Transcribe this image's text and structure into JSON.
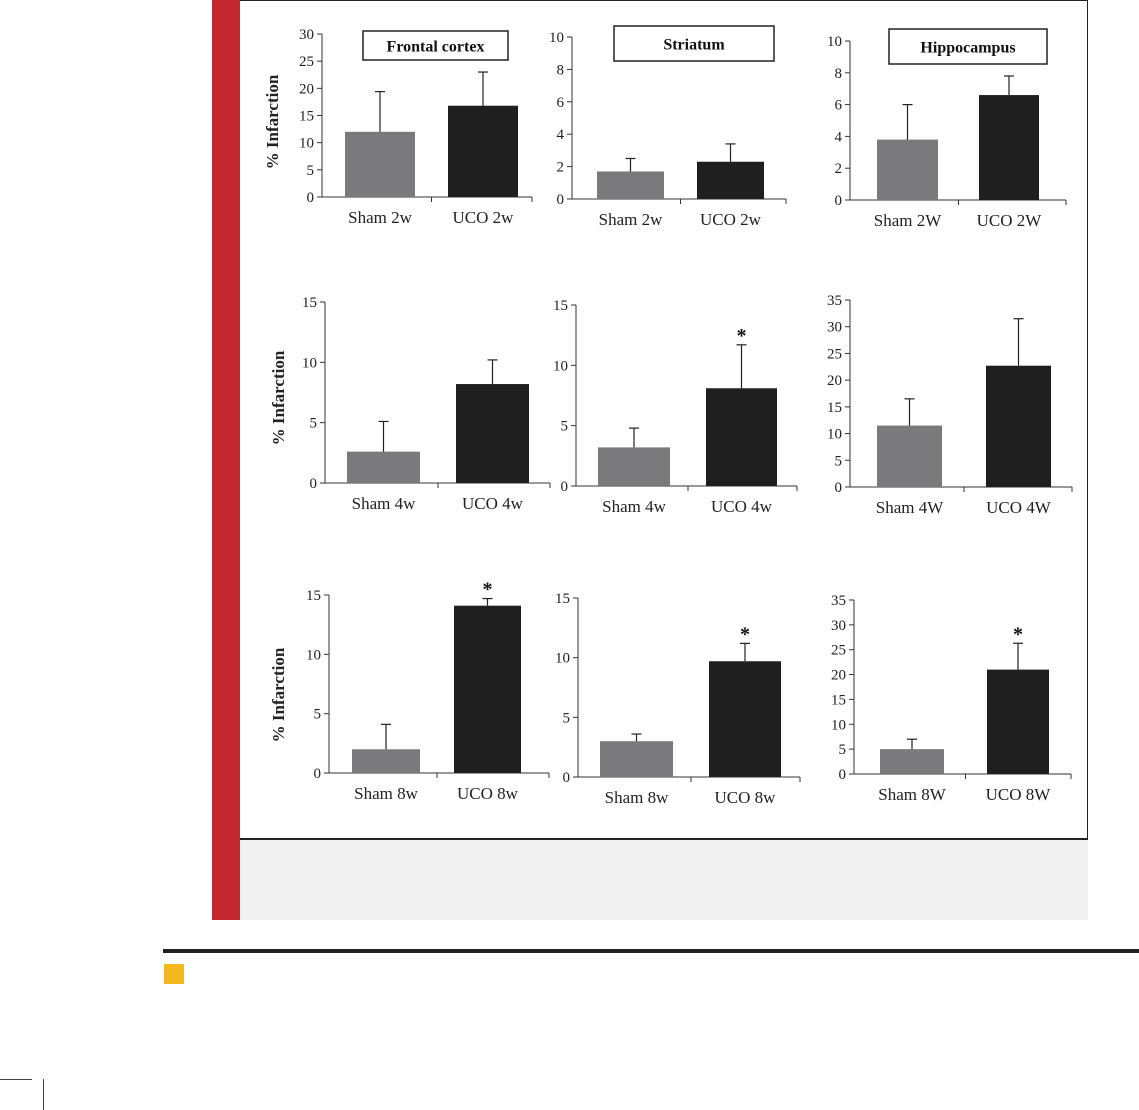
{
  "colors": {
    "sham": "#7a7a7c",
    "uco": "#1f1f20",
    "stripe": "#c1272d",
    "caption_bg": "#f1f1f2",
    "accent_square": "#f2b81e"
  },
  "chart_data": [
    {
      "type": "bar",
      "title": "Frontal cortex",
      "ylabel": "% Infarction",
      "categories": [
        "Sham 2w",
        "UCO 2w"
      ],
      "values": [
        12,
        16.8
      ],
      "errors": [
        7.4,
        6.2
      ],
      "ylim": [
        0,
        30
      ],
      "yticks": [
        "0",
        "5",
        "10",
        "15",
        "20",
        "25",
        "30"
      ],
      "significant": [
        false,
        false
      ]
    },
    {
      "type": "bar",
      "title": "Striatum",
      "ylabel": "",
      "categories": [
        "Sham 2w",
        "UCO 2w"
      ],
      "values": [
        1.7,
        2.3
      ],
      "errors": [
        0.8,
        1.1
      ],
      "ylim": [
        0,
        10
      ],
      "yticks": [
        "0",
        "2",
        "4",
        "6",
        "8",
        "10"
      ],
      "significant": [
        false,
        false
      ]
    },
    {
      "type": "bar",
      "title": "Hippocampus",
      "ylabel": "",
      "categories": [
        "Sham 2W",
        "UCO 2W"
      ],
      "values": [
        3.8,
        6.6
      ],
      "errors": [
        2.2,
        1.2
      ],
      "ylim": [
        0,
        10
      ],
      "yticks": [
        "0",
        "2",
        "4",
        "6",
        "8",
        "10"
      ],
      "significant": [
        false,
        false
      ]
    },
    {
      "type": "bar",
      "title": "",
      "ylabel": "% Infarction",
      "categories": [
        "Sham 4w",
        "UCO 4w"
      ],
      "values": [
        2.6,
        8.2
      ],
      "errors": [
        2.5,
        2.0
      ],
      "ylim": [
        0,
        15
      ],
      "yticks": [
        "0",
        "5",
        "10",
        "15"
      ],
      "significant": [
        false,
        false
      ]
    },
    {
      "type": "bar",
      "title": "",
      "ylabel": "",
      "categories": [
        "Sham 4w",
        "UCO 4w"
      ],
      "values": [
        3.2,
        8.1
      ],
      "errors": [
        1.6,
        3.6
      ],
      "ylim": [
        0,
        15
      ],
      "yticks": [
        "0",
        "5",
        "10",
        "15"
      ],
      "significant": [
        false,
        true
      ]
    },
    {
      "type": "bar",
      "title": "",
      "ylabel": "",
      "categories": [
        "Sham 4W",
        "UCO 4W"
      ],
      "values": [
        11.5,
        22.7
      ],
      "errors": [
        5.0,
        8.8
      ],
      "ylim": [
        0,
        35
      ],
      "yticks": [
        "0",
        "5",
        "10",
        "15",
        "20",
        "25",
        "30",
        "35"
      ],
      "significant": [
        false,
        false
      ]
    },
    {
      "type": "bar",
      "title": "",
      "ylabel": "% Infarction",
      "categories": [
        "Sham 8w",
        "UCO 8w"
      ],
      "values": [
        2.0,
        14.1
      ],
      "errors": [
        2.1,
        0.6
      ],
      "ylim": [
        0,
        15
      ],
      "yticks": [
        "0",
        "5",
        "10",
        "15"
      ],
      "significant": [
        false,
        true
      ]
    },
    {
      "type": "bar",
      "title": "",
      "ylabel": "",
      "categories": [
        "Sham 8w",
        "UCO 8w"
      ],
      "values": [
        3.0,
        9.7
      ],
      "errors": [
        0.6,
        1.5
      ],
      "ylim": [
        0,
        15
      ],
      "yticks": [
        "0",
        "5",
        "10",
        "15"
      ],
      "significant": [
        false,
        true
      ]
    },
    {
      "type": "bar",
      "title": "",
      "ylabel": "",
      "categories": [
        "Sham 8W",
        "UCO 8W"
      ],
      "values": [
        5.0,
        21.0
      ],
      "errors": [
        2.0,
        5.3
      ],
      "ylim": [
        0,
        35
      ],
      "yticks": [
        "0",
        "5",
        "10",
        "15",
        "20",
        "25",
        "30",
        "35"
      ],
      "significant": [
        false,
        true
      ]
    }
  ],
  "significance_marker": "*"
}
